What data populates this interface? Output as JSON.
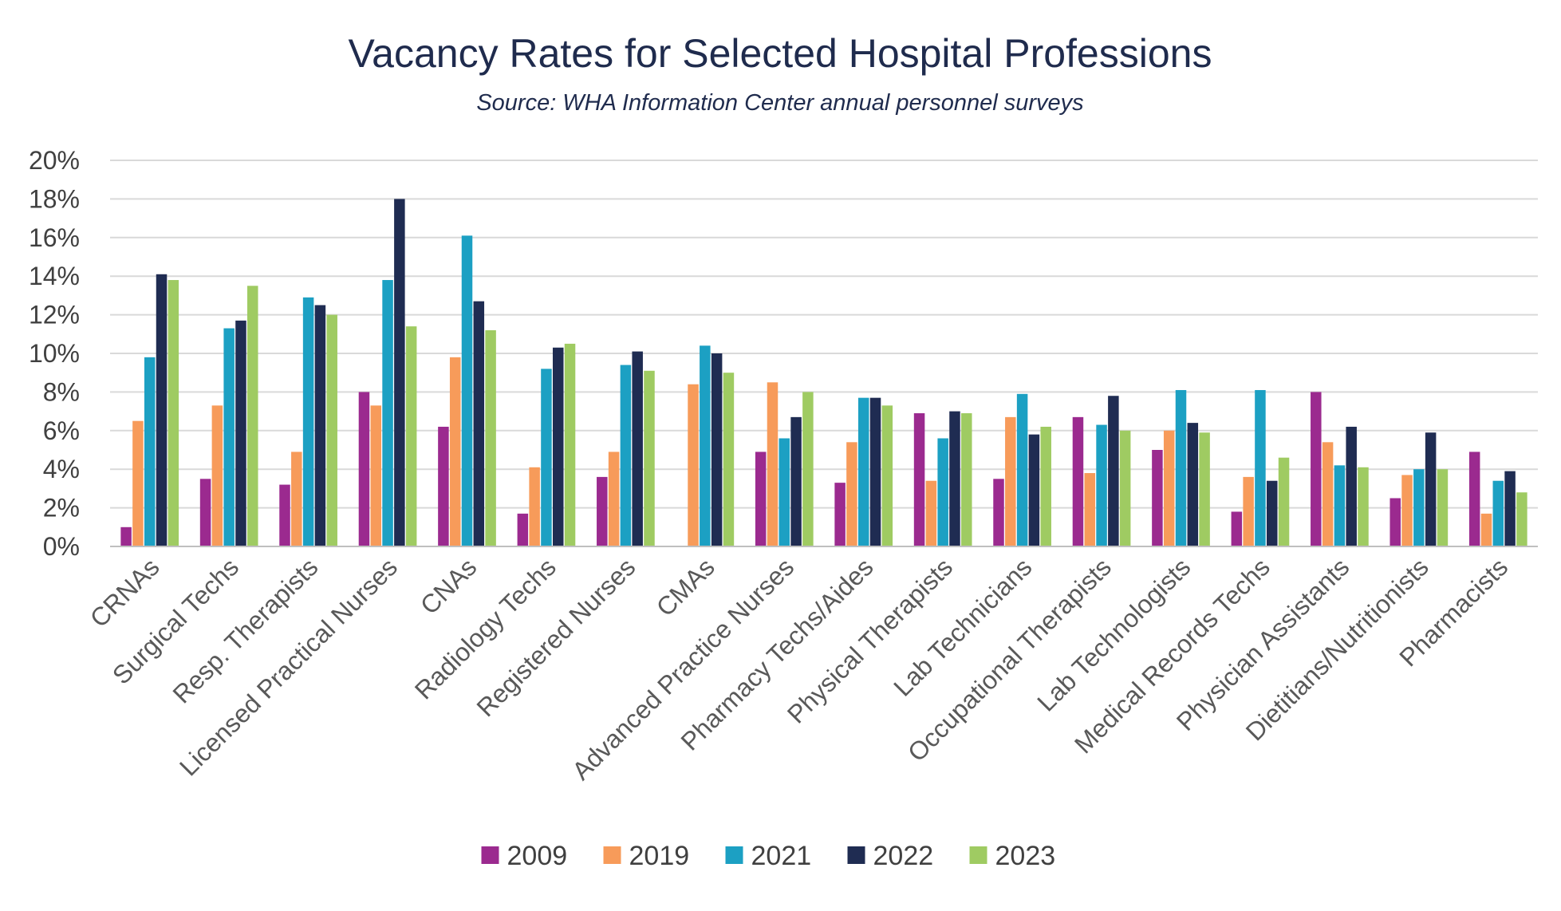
{
  "chart_data": {
    "type": "bar",
    "title": "Vacancy Rates for Selected Hospital Professions",
    "subtitle": "Source: WHA Information Center annual personnel surveys",
    "xlabel": "",
    "ylabel": "",
    "ylim": [
      0,
      20
    ],
    "yticks": [
      0,
      2,
      4,
      6,
      8,
      10,
      12,
      14,
      16,
      18,
      20
    ],
    "ytick_labels": [
      "0%",
      "2%",
      "4%",
      "6%",
      "8%",
      "10%",
      "12%",
      "14%",
      "16%",
      "18%",
      "20%"
    ],
    "grid": true,
    "legend_position": "bottom",
    "categories": [
      "CRNAs",
      "Surgical Techs",
      "Resp. Therapists",
      "Licensed Practical Nurses",
      "CNAs",
      "Radiology Techs",
      "Registered Nurses",
      "CMAs",
      "Advanced Practice Nurses",
      "Pharmacy Techs/Aides",
      "Physical Therapists",
      "Lab Technicians",
      "Occupational Therapists",
      "Lab Technologists",
      "Medical Records Techs",
      "Physician Assistants",
      "Dietitians/Nutritionists",
      "Pharmacists"
    ],
    "series": [
      {
        "name": "2009",
        "color": "#9b2a8f",
        "values": [
          1.0,
          3.5,
          3.2,
          8.0,
          6.2,
          1.7,
          3.6,
          null,
          4.9,
          3.3,
          6.9,
          3.5,
          6.7,
          5.0,
          1.8,
          8.0,
          2.5,
          4.9
        ]
      },
      {
        "name": "2019",
        "color": "#f79b5a",
        "values": [
          6.5,
          7.3,
          4.9,
          7.3,
          9.8,
          4.1,
          4.9,
          8.4,
          8.5,
          5.4,
          3.4,
          6.7,
          3.8,
          6.0,
          3.6,
          5.4,
          3.7,
          1.7
        ]
      },
      {
        "name": "2021",
        "color": "#1ca0c3",
        "values": [
          9.8,
          11.3,
          12.9,
          13.8,
          16.1,
          9.2,
          9.4,
          10.4,
          5.6,
          7.7,
          5.6,
          7.9,
          6.3,
          8.1,
          8.1,
          4.2,
          4.0,
          3.4
        ]
      },
      {
        "name": "2022",
        "color": "#1f2c52",
        "values": [
          14.1,
          11.7,
          12.5,
          18.0,
          12.7,
          10.3,
          10.1,
          10.0,
          6.7,
          7.7,
          7.0,
          5.8,
          7.8,
          6.4,
          3.4,
          6.2,
          5.9,
          3.9
        ]
      },
      {
        "name": "2023",
        "color": "#9fcb62",
        "values": [
          13.8,
          13.5,
          12.0,
          11.4,
          11.2,
          10.5,
          9.1,
          9.0,
          8.0,
          7.3,
          6.9,
          6.2,
          6.0,
          5.9,
          4.6,
          4.1,
          4.0,
          2.8
        ]
      }
    ]
  }
}
